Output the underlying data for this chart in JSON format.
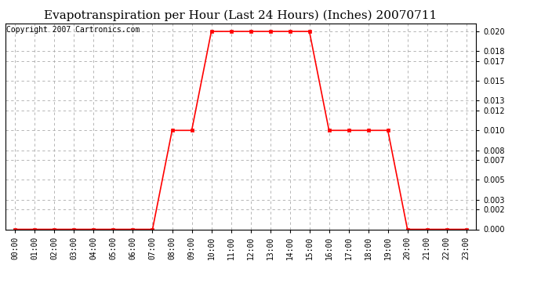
{
  "title": "Evapotranspiration per Hour (Last 24 Hours) (Inches) 20070711",
  "copyright_text": "Copyright 2007 Cartronics.com",
  "hours": [
    "00:00",
    "01:00",
    "02:00",
    "03:00",
    "04:00",
    "05:00",
    "06:00",
    "07:00",
    "08:00",
    "09:00",
    "10:00",
    "11:00",
    "12:00",
    "13:00",
    "14:00",
    "15:00",
    "16:00",
    "17:00",
    "18:00",
    "19:00",
    "20:00",
    "21:00",
    "22:00",
    "23:00"
  ],
  "values": [
    0.0,
    0.0,
    0.0,
    0.0,
    0.0,
    0.0,
    0.0,
    0.0,
    0.01,
    0.01,
    0.02,
    0.02,
    0.02,
    0.02,
    0.02,
    0.02,
    0.01,
    0.01,
    0.01,
    0.01,
    0.0,
    0.0,
    0.0,
    0.0
  ],
  "line_color": "#ff0000",
  "marker": "s",
  "marker_size": 3,
  "marker_color": "#ff0000",
  "background_color": "#ffffff",
  "grid_color": "#aaaaaa",
  "ylim": [
    0.0,
    0.0208
  ],
  "yticks": [
    0.0,
    0.002,
    0.003,
    0.005,
    0.007,
    0.008,
    0.01,
    0.012,
    0.013,
    0.015,
    0.017,
    0.018,
    0.02
  ],
  "title_fontsize": 11,
  "copyright_fontsize": 7,
  "tick_fontsize": 7,
  "line_width": 1.2
}
